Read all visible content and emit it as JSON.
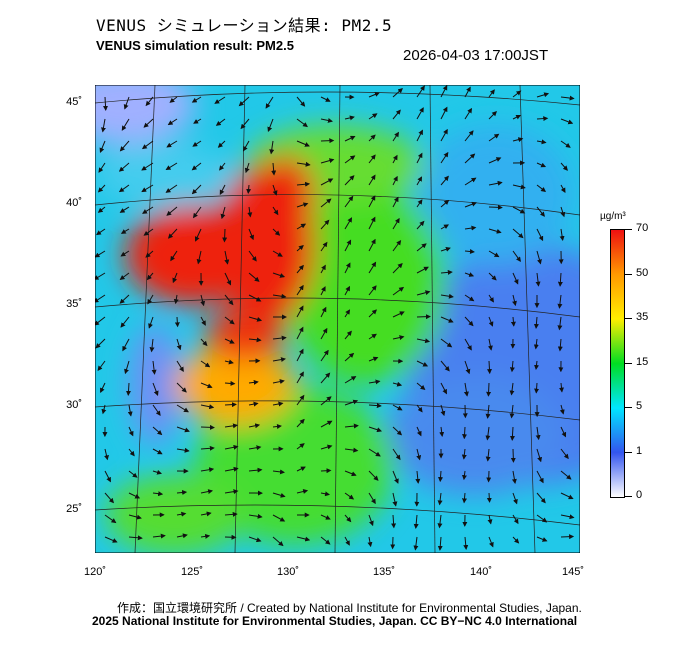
{
  "header": {
    "title_jp": "VENUS シミュレーション結果: PM2.5",
    "title_en": "VENUS simulation result: PM2.5",
    "timestamp": "2026-04-03 17:00JST"
  },
  "map": {
    "lat_labels": [
      "45˚",
      "40˚",
      "35˚",
      "30˚",
      "25˚"
    ],
    "lon_labels": [
      "120˚",
      "125˚",
      "130˚",
      "135˚",
      "140˚",
      "145˚"
    ]
  },
  "colorbar": {
    "unit": "µg/m³",
    "labels": [
      "70",
      "50",
      "35",
      "15",
      "5",
      "1",
      "0"
    ],
    "colors": [
      "#ffffff",
      "#3355ee",
      "#00e5ff",
      "#00dd22",
      "#ffee00",
      "#ff9900",
      "#ee1111"
    ]
  },
  "footer": {
    "credit_line": "作成：国立環境研究所 / Created by National Institute for Environmental Studies, Japan.",
    "license_line": "2025 National Institute for Environmental Studies, Japan. CC BY−NC 4.0 International"
  }
}
